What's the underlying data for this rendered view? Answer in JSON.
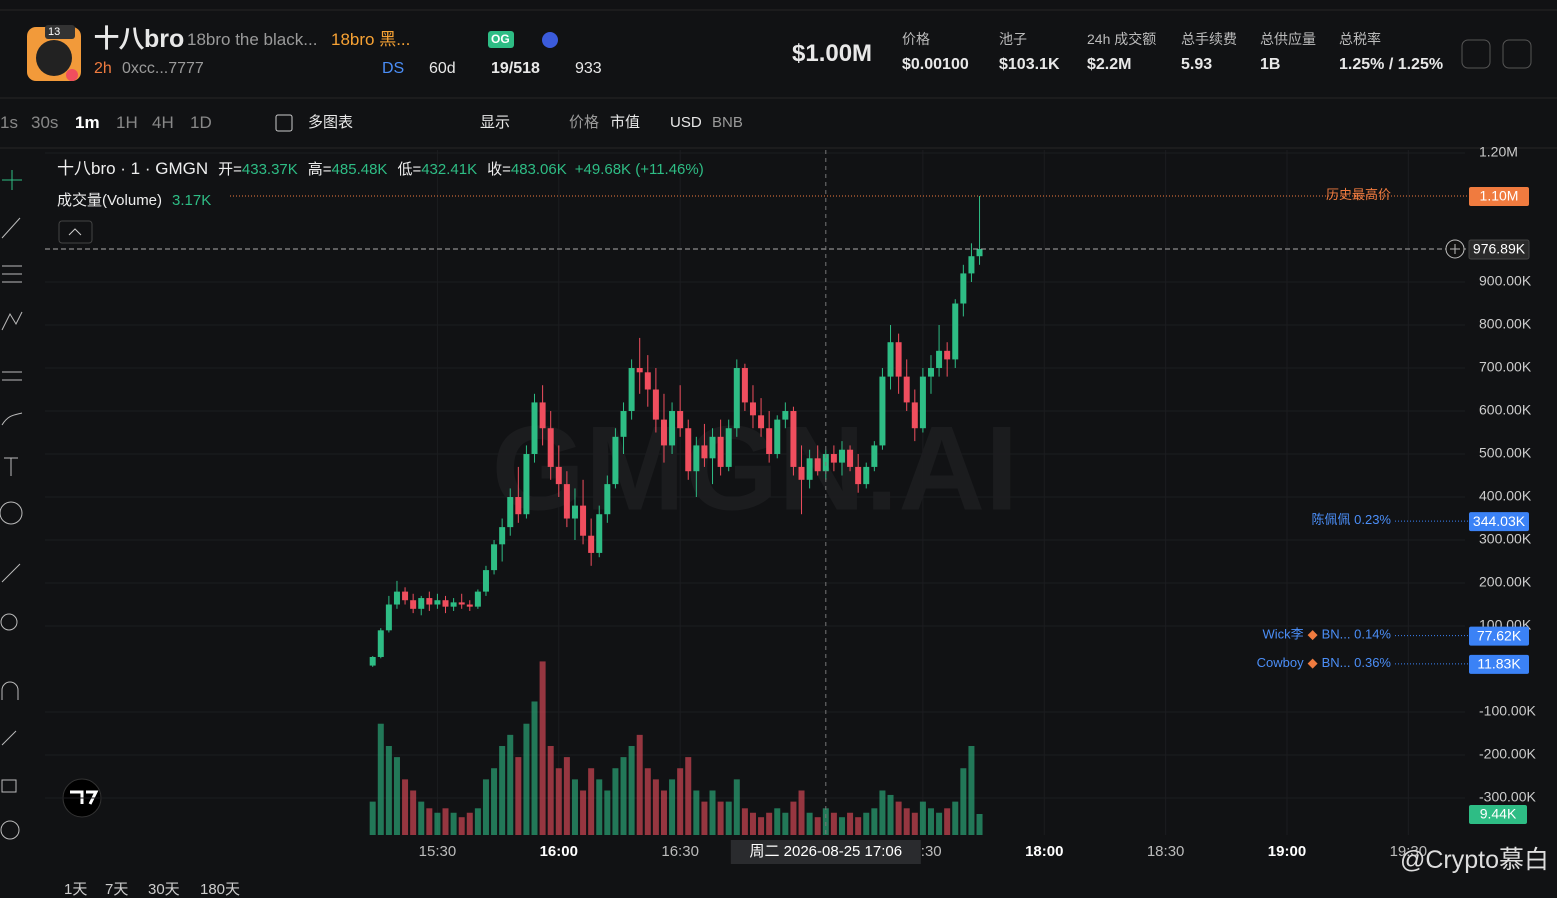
{
  "header": {
    "badge": "13",
    "name": "十八bro",
    "full_name": "18bro the black...",
    "alias": "18bro 黑...",
    "tag": "OG",
    "age": "2h",
    "address": "0xcc...7777",
    "ds": "DS",
    "days": "60d",
    "holders": "19/518",
    "views": "933",
    "market_cap": "$1.00M",
    "stats": [
      {
        "label": "价格",
        "value": "$0.00100"
      },
      {
        "label": "池子",
        "value": "$103.1K"
      },
      {
        "label": "24h 成交额",
        "value": "$2.2M"
      },
      {
        "label": "总手续费",
        "value": "5.93"
      },
      {
        "label": "总供应量",
        "value": "1B"
      },
      {
        "label": "总税率",
        "value": "1.25% / 1.25%"
      }
    ]
  },
  "toolbar": {
    "intervals": [
      "1s",
      "30s",
      "1m",
      "1H",
      "4H",
      "1D"
    ],
    "multi": "多图表",
    "display": "显示",
    "price": "价格",
    "mcap": "市值",
    "usd": "USD",
    "bnb": "BNB"
  },
  "footer": {
    "ranges": [
      "1天",
      "7天",
      "30天",
      "180天"
    ],
    "watermark": "@Crypto慕白"
  },
  "chart_data": {
    "type": "candlestick",
    "title": "十八bro · 1 · GMGN",
    "legend": [
      {
        "label": "开=",
        "value": "433.37K"
      },
      {
        "label": "高=",
        "value": "485.48K"
      },
      {
        "label": "低=",
        "value": "432.41K"
      },
      {
        "label": "收=",
        "value": "483.06K"
      }
    ],
    "change": "+49.68K (+11.46%)",
    "volume_title": "成交量(Volume)",
    "volume_value": "3.17K",
    "volume_last": "9.44K",
    "watermark": "GMGN.AI",
    "crosshair_label": "周二 2026-08-25  17:06",
    "crosshair_x": "17:06",
    "up_color": "#2ebd85",
    "down_color": "#f04e5e",
    "x": [
      "15:14",
      "15:16",
      "15:18",
      "15:20",
      "15:22",
      "15:24",
      "15:26",
      "15:28",
      "15:30",
      "15:32",
      "15:34",
      "15:36",
      "15:38",
      "15:40",
      "15:42",
      "15:44",
      "15:46",
      "15:48",
      "15:50",
      "15:52",
      "15:54",
      "15:56",
      "15:58",
      "16:00",
      "16:02",
      "16:04",
      "16:06",
      "16:08",
      "16:10",
      "16:12",
      "16:14",
      "16:16",
      "16:18",
      "16:20",
      "16:22",
      "16:24",
      "16:26",
      "16:28",
      "16:30",
      "16:32",
      "16:34",
      "16:36",
      "16:38",
      "16:40",
      "16:42",
      "16:44",
      "16:46",
      "16:48",
      "16:50",
      "16:52",
      "16:54",
      "16:56",
      "16:58",
      "17:00",
      "17:02",
      "17:04",
      "17:06",
      "17:08",
      "17:10",
      "17:12",
      "17:14",
      "17:16",
      "17:18",
      "17:20",
      "17:22",
      "17:24",
      "17:26",
      "17:28",
      "17:30",
      "17:32",
      "17:34",
      "17:36",
      "17:38",
      "17:40",
      "17:42",
      "17:44"
    ],
    "open": [
      8000,
      28000,
      90000,
      150000,
      180000,
      160000,
      140000,
      165000,
      150000,
      160000,
      145000,
      155000,
      150000,
      145000,
      180000,
      230000,
      290000,
      330000,
      400000,
      360000,
      500000,
      620000,
      560000,
      470000,
      430000,
      350000,
      380000,
      310000,
      270000,
      360000,
      430000,
      540000,
      600000,
      700000,
      690000,
      650000,
      580000,
      520000,
      600000,
      560000,
      460000,
      520000,
      490000,
      540000,
      470000,
      560000,
      700000,
      620000,
      590000,
      560000,
      500000,
      580000,
      600000,
      470000,
      440000,
      490000,
      460000,
      500000,
      480000,
      510000,
      470000,
      430000,
      470000,
      520000,
      680000,
      760000,
      680000,
      620000,
      560000,
      680000,
      700000,
      740000,
      720000,
      850000,
      920000,
      960000
    ],
    "high": [
      30000,
      95000,
      170000,
      205000,
      190000,
      175000,
      170000,
      180000,
      175000,
      170000,
      165000,
      175000,
      160000,
      185000,
      240000,
      300000,
      350000,
      420000,
      470000,
      520000,
      640000,
      660000,
      600000,
      520000,
      460000,
      420000,
      440000,
      350000,
      380000,
      450000,
      560000,
      620000,
      720000,
      770000,
      730000,
      700000,
      640000,
      620000,
      660000,
      580000,
      540000,
      570000,
      560000,
      580000,
      580000,
      720000,
      710000,
      660000,
      630000,
      600000,
      590000,
      620000,
      610000,
      520000,
      510000,
      520000,
      510000,
      520000,
      530000,
      520000,
      500000,
      480000,
      530000,
      700000,
      800000,
      780000,
      720000,
      650000,
      700000,
      730000,
      800000,
      760000,
      860000,
      940000,
      990000,
      1100000
    ],
    "low": [
      5000,
      25000,
      85000,
      140000,
      150000,
      130000,
      125000,
      135000,
      140000,
      130000,
      135000,
      140000,
      135000,
      140000,
      170000,
      220000,
      250000,
      310000,
      340000,
      350000,
      480000,
      520000,
      440000,
      400000,
      330000,
      300000,
      290000,
      240000,
      260000,
      340000,
      420000,
      500000,
      580000,
      640000,
      610000,
      550000,
      480000,
      500000,
      540000,
      440000,
      400000,
      470000,
      430000,
      450000,
      460000,
      540000,
      600000,
      560000,
      540000,
      480000,
      490000,
      560000,
      450000,
      360000,
      420000,
      450000,
      440000,
      460000,
      450000,
      460000,
      410000,
      420000,
      460000,
      510000,
      650000,
      640000,
      600000,
      530000,
      550000,
      640000,
      680000,
      680000,
      700000,
      820000,
      900000,
      940000
    ],
    "close": [
      28000,
      90000,
      150000,
      180000,
      160000,
      140000,
      165000,
      150000,
      160000,
      145000,
      155000,
      150000,
      145000,
      180000,
      230000,
      290000,
      330000,
      400000,
      360000,
      500000,
      620000,
      560000,
      470000,
      430000,
      350000,
      380000,
      310000,
      270000,
      360000,
      430000,
      540000,
      600000,
      700000,
      690000,
      650000,
      580000,
      520000,
      600000,
      560000,
      460000,
      520000,
      490000,
      540000,
      470000,
      560000,
      700000,
      620000,
      590000,
      560000,
      500000,
      580000,
      600000,
      470000,
      440000,
      490000,
      460000,
      500000,
      480000,
      510000,
      470000,
      430000,
      470000,
      520000,
      680000,
      760000,
      680000,
      620000,
      560000,
      680000,
      700000,
      740000,
      720000,
      850000,
      920000,
      960000,
      976890
    ],
    "volume": [
      15000,
      50000,
      40000,
      35000,
      25000,
      20000,
      15000,
      12000,
      10000,
      12000,
      10000,
      8000,
      10000,
      12000,
      25000,
      30000,
      40000,
      45000,
      35000,
      50000,
      60000,
      78000,
      40000,
      30000,
      35000,
      25000,
      20000,
      30000,
      25000,
      20000,
      30000,
      35000,
      40000,
      45000,
      30000,
      25000,
      20000,
      25000,
      30000,
      35000,
      20000,
      15000,
      20000,
      15000,
      15000,
      25000,
      12000,
      10000,
      8000,
      10000,
      12000,
      10000,
      15000,
      20000,
      10000,
      8000,
      12000,
      10000,
      8000,
      10000,
      8000,
      10000,
      12000,
      20000,
      18000,
      15000,
      12000,
      10000,
      15000,
      12000,
      10000,
      12000,
      15000,
      30000,
      40000,
      9440
    ],
    "volume_ylim": [
      0,
      105600
    ],
    "ylim": [
      -386000,
      1207000
    ],
    "yticks": [
      {
        "value": 1200000,
        "label": "1.20M"
      },
      {
        "value": 900000,
        "label": "900.00K"
      },
      {
        "value": 800000,
        "label": "800.00K"
      },
      {
        "value": 700000,
        "label": "700.00K"
      },
      {
        "value": 600000,
        "label": "600.00K"
      },
      {
        "value": 500000,
        "label": "500.00K"
      },
      {
        "value": 400000,
        "label": "400.00K"
      },
      {
        "value": 300000,
        "label": "300.00K"
      },
      {
        "value": 200000,
        "label": "200.00K"
      },
      {
        "value": 100000,
        "label": "100.00K"
      },
      {
        "value": -100000,
        "label": "-100.00K"
      },
      {
        "value": -200000,
        "label": "-200.00K"
      },
      {
        "value": -300000,
        "label": "-300.00K"
      }
    ],
    "xlim": [
      "13:53",
      "19:44"
    ],
    "xticks": [
      "15:30",
      "16:00",
      "16:30",
      "17:30",
      "18:00",
      "18:30",
      "19:00",
      "19:30"
    ],
    "grid": true,
    "price_lines": [
      {
        "label": "历史最高价",
        "value": 1100000,
        "value_label": "1.10M",
        "color": "#f07b3f"
      },
      {
        "value": 976890,
        "value_label": "976.89K",
        "color": "#2a2a2a"
      },
      {
        "label": "陈佩佩 0.23%",
        "value": 344030,
        "value_label": "344.03K",
        "color": "#3b82f6"
      },
      {
        "label": "Wick李",
        "note": "BN... 0.14%",
        "value": 77620,
        "value_label": "77.62K",
        "color": "#3b82f6"
      },
      {
        "label": "Cowboy",
        "note": "BN... 0.36%",
        "value": 11830,
        "value_label": "11.83K",
        "color": "#3b82f6"
      }
    ]
  }
}
